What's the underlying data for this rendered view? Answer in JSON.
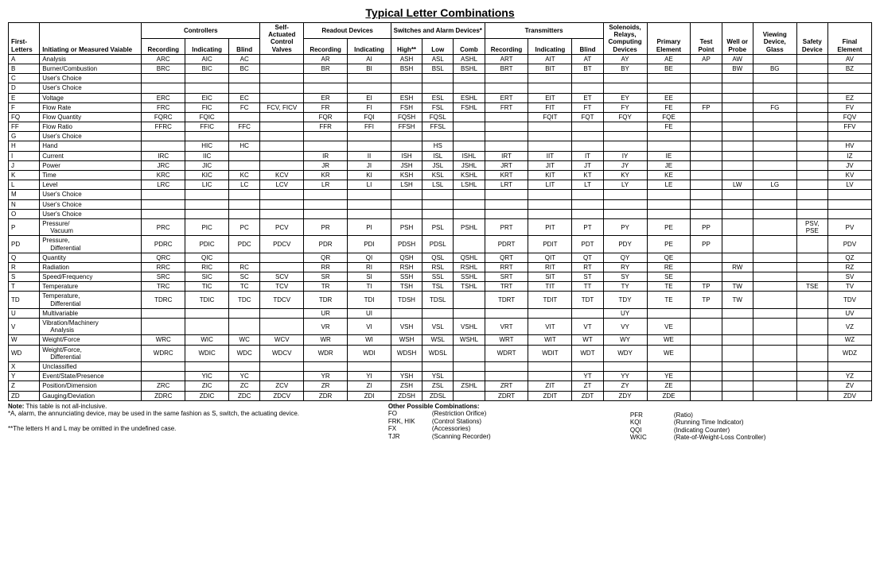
{
  "title": "Typical Letter Combinations",
  "group_headers": {
    "controllers": "Controllers",
    "readout": "Readout Devices",
    "switches": "Switches and Alarm Devices*",
    "transmitters": "Transmitters"
  },
  "col_headers": {
    "first_letters": "First-Letters",
    "initiating": "Initiating or Measured Vaiable",
    "recording": "Recording",
    "indicating": "Indicating",
    "blind": "Blind",
    "scv": "Self-Actuated Control Valves",
    "high": "High**",
    "low": "Low",
    "comb": "Comb",
    "solenoids": "Solenoids, Relays, Computing Devices",
    "primary": "Primary Element",
    "test": "Test Point",
    "well": "Well or Probe",
    "viewing": "Viewing Device, Glass",
    "safety": "Safety Device",
    "final": "Final Element"
  },
  "rows": [
    {
      "fl": "A",
      "var": "Analysis",
      "c": [
        "ARC",
        "AIC",
        "AC",
        "",
        "AR",
        "AI",
        "ASH",
        "ASL",
        "ASHL",
        "ART",
        "AIT",
        "AT",
        "AY",
        "AE",
        "AP",
        "AW",
        "",
        "",
        "AV"
      ]
    },
    {
      "fl": "B",
      "var": "Burner/Combustion",
      "c": [
        "BRC",
        "BIC",
        "BC",
        "",
        "BR",
        "BI",
        "BSH",
        "BSL",
        "BSHL",
        "BRT",
        "BIT",
        "BT",
        "BY",
        "BE",
        "",
        "BW",
        "BG",
        "",
        "BZ"
      ]
    },
    {
      "fl": "C",
      "var": "User's Choice",
      "c": [
        "",
        "",
        "",
        "",
        "",
        "",
        "",
        "",
        "",
        "",
        "",
        "",
        "",
        "",
        "",
        "",
        "",
        "",
        ""
      ]
    },
    {
      "fl": "D",
      "var": "User's Choice",
      "c": [
        "",
        "",
        "",
        "",
        "",
        "",
        "",
        "",
        "",
        "",
        "",
        "",
        "",
        "",
        "",
        "",
        "",
        "",
        ""
      ]
    },
    {
      "fl": "E",
      "var": "Voltage",
      "c": [
        "ERC",
        "EIC",
        "EC",
        "",
        "ER",
        "EI",
        "ESH",
        "ESL",
        "ESHL",
        "ERT",
        "EIT",
        "ET",
        "EY",
        "EE",
        "",
        "",
        "",
        "",
        "EZ"
      ]
    },
    {
      "fl": "F",
      "var": "Flow Rate",
      "c": [
        "FRC",
        "FIC",
        "FC",
        "FCV, FICV",
        "FR",
        "FI",
        "FSH",
        "FSL",
        "FSHL",
        "FRT",
        "FIT",
        "FT",
        "FY",
        "FE",
        "FP",
        "",
        "FG",
        "",
        "FV"
      ]
    },
    {
      "fl": "FQ",
      "var": "Flow Quantity",
      "c": [
        "FQRC",
        "FQIC",
        "",
        "",
        "FQR",
        "FQI",
        "FQSH",
        "FQSL",
        "",
        "",
        "FQIT",
        "FQT",
        "FQY",
        "FQE",
        "",
        "",
        "",
        "",
        "FQV"
      ]
    },
    {
      "fl": "FF",
      "var": "Flow Ratio",
      "c": [
        "FFRC",
        "FFIC",
        "FFC",
        "",
        "FFR",
        "FFI",
        "FFSH",
        "FFSL",
        "",
        "",
        "",
        "",
        "",
        "FE",
        "",
        "",
        "",
        "",
        "FFV"
      ]
    },
    {
      "fl": "G",
      "var": "User's Choice",
      "c": [
        "",
        "",
        "",
        "",
        "",
        "",
        "",
        "",
        "",
        "",
        "",
        "",
        "",
        "",
        "",
        "",
        "",
        "",
        ""
      ]
    },
    {
      "fl": "H",
      "var": "Hand",
      "c": [
        "",
        "HIC",
        "HC",
        "",
        "",
        "",
        "",
        "HS",
        "",
        "",
        "",
        "",
        "",
        "",
        "",
        "",
        "",
        "",
        "HV"
      ]
    },
    {
      "fl": "I",
      "var": "Current",
      "c": [
        "IRC",
        "IIC",
        "",
        "",
        "IR",
        "II",
        "ISH",
        "ISL",
        "ISHL",
        "IRT",
        "IIT",
        "IT",
        "IY",
        "IE",
        "",
        "",
        "",
        "",
        "IZ"
      ]
    },
    {
      "fl": "J",
      "var": "Power",
      "c": [
        "JRC",
        "JIC",
        "",
        "",
        "JR",
        "JI",
        "JSH",
        "JSL",
        "JSHL",
        "JRT",
        "JIT",
        "JT",
        "JY",
        "JE",
        "",
        "",
        "",
        "",
        "JV"
      ]
    },
    {
      "fl": "K",
      "var": "Time",
      "c": [
        "KRC",
        "KIC",
        "KC",
        "KCV",
        "KR",
        "KI",
        "KSH",
        "KSL",
        "KSHL",
        "KRT",
        "KIT",
        "KT",
        "KY",
        "KE",
        "",
        "",
        "",
        "",
        "KV"
      ]
    },
    {
      "fl": "L",
      "var": "Level",
      "c": [
        "LRC",
        "LIC",
        "LC",
        "LCV",
        "LR",
        "LI",
        "LSH",
        "LSL",
        "LSHL",
        "LRT",
        "LIT",
        "LT",
        "LY",
        "LE",
        "",
        "LW",
        "LG",
        "",
        "LV"
      ]
    },
    {
      "fl": "M",
      "var": "User's Choice",
      "c": [
        "",
        "",
        "",
        "",
        "",
        "",
        "",
        "",
        "",
        "",
        "",
        "",
        "",
        "",
        "",
        "",
        "",
        "",
        ""
      ]
    },
    {
      "fl": "N",
      "var": "User's Choice",
      "c": [
        "",
        "",
        "",
        "",
        "",
        "",
        "",
        "",
        "",
        "",
        "",
        "",
        "",
        "",
        "",
        "",
        "",
        "",
        ""
      ]
    },
    {
      "fl": "O",
      "var": "User's Choice",
      "c": [
        "",
        "",
        "",
        "",
        "",
        "",
        "",
        "",
        "",
        "",
        "",
        "",
        "",
        "",
        "",
        "",
        "",
        "",
        ""
      ]
    },
    {
      "fl": "P",
      "var": "Pressure/",
      "var2": "Vacuum",
      "c": [
        "PRC",
        "PIC",
        "PC",
        "PCV",
        "PR",
        "PI",
        "PSH",
        "PSL",
        "PSHL",
        "PRT",
        "PIT",
        "PT",
        "PY",
        "PE",
        "PP",
        "",
        "",
        "PSV, PSE",
        "PV"
      ]
    },
    {
      "fl": "PD",
      "var": "Pressure,",
      "var2": "Differential",
      "c": [
        "PDRC",
        "PDIC",
        "PDC",
        "PDCV",
        "PDR",
        "PDI",
        "PDSH",
        "PDSL",
        "",
        "PDRT",
        "PDIT",
        "PDT",
        "PDY",
        "PE",
        "PP",
        "",
        "",
        "",
        "PDV"
      ]
    },
    {
      "fl": "Q",
      "var": "Quantity",
      "c": [
        "QRC",
        "QIC",
        "",
        "",
        "QR",
        "QI",
        "QSH",
        "QSL",
        "QSHL",
        "QRT",
        "QIT",
        "QT",
        "QY",
        "QE",
        "",
        "",
        "",
        "",
        "QZ"
      ]
    },
    {
      "fl": "R",
      "var": "Radiation",
      "c": [
        "RRC",
        "RIC",
        "RC",
        "",
        "RR",
        "RI",
        "RSH",
        "RSL",
        "RSHL",
        "RRT",
        "RIT",
        "RT",
        "RY",
        "RE",
        "",
        "RW",
        "",
        "",
        "RZ"
      ]
    },
    {
      "fl": "S",
      "var": "Speed/Frequency",
      "c": [
        "SRC",
        "SIC",
        "SC",
        "SCV",
        "SR",
        "SI",
        "SSH",
        "SSL",
        "SSHL",
        "SRT",
        "SIT",
        "ST",
        "SY",
        "SE",
        "",
        "",
        "",
        "",
        "SV"
      ]
    },
    {
      "fl": "T",
      "var": "Temperature",
      "c": [
        "TRC",
        "TIC",
        "TC",
        "TCV",
        "TR",
        "TI",
        "TSH",
        "TSL",
        "TSHL",
        "TRT",
        "TIT",
        "TT",
        "TY",
        "TE",
        "TP",
        "TW",
        "",
        "TSE",
        "TV"
      ]
    },
    {
      "fl": "TD",
      "var": "Temperature,",
      "var2": "Differential",
      "c": [
        "TDRC",
        "TDIC",
        "TDC",
        "TDCV",
        "TDR",
        "TDI",
        "TDSH",
        "TDSL",
        "",
        "TDRT",
        "TDIT",
        "TDT",
        "TDY",
        "TE",
        "TP",
        "TW",
        "",
        "",
        "TDV"
      ]
    },
    {
      "fl": "U",
      "var": "Multivariable",
      "c": [
        "",
        "",
        "",
        "",
        "UR",
        "UI",
        "",
        "",
        "",
        "",
        "",
        "",
        "UY",
        "",
        "",
        "",
        "",
        "",
        "UV"
      ]
    },
    {
      "fl": "V",
      "var": "Vibration/Machinery",
      "var2": "Analysis",
      "c": [
        "",
        "",
        "",
        "",
        "VR",
        "VI",
        "VSH",
        "VSL",
        "VSHL",
        "VRT",
        "VIT",
        "VT",
        "VY",
        "VE",
        "",
        "",
        "",
        "",
        "VZ"
      ]
    },
    {
      "fl": "W",
      "var": "Weight/Force",
      "c": [
        "WRC",
        "WIC",
        "WC",
        "WCV",
        "WR",
        "WI",
        "WSH",
        "WSL",
        "WSHL",
        "WRT",
        "WIT",
        "WT",
        "WY",
        "WE",
        "",
        "",
        "",
        "",
        "WZ"
      ]
    },
    {
      "fl": "WD",
      "var": "Weight/Force,",
      "var2": "Differential",
      "c": [
        "WDRC",
        "WDIC",
        "WDC",
        "WDCV",
        "WDR",
        "WDI",
        "WDSH",
        "WDSL",
        "",
        "WDRT",
        "WDIT",
        "WDT",
        "WDY",
        "WE",
        "",
        "",
        "",
        "",
        "WDZ"
      ]
    },
    {
      "fl": "X",
      "var": "Unclassified",
      "c": [
        "",
        "",
        "",
        "",
        "",
        "",
        "",
        "",
        "",
        "",
        "",
        "",
        "",
        "",
        "",
        "",
        "",
        "",
        ""
      ]
    },
    {
      "fl": "Y",
      "var": "Event/State/Presence",
      "c": [
        "",
        "YIC",
        "YC",
        "",
        "YR",
        "YI",
        "YSH",
        "YSL",
        "",
        "",
        "",
        "YT",
        "YY",
        "YE",
        "",
        "",
        "",
        "",
        "YZ"
      ]
    },
    {
      "fl": "Z",
      "var": "Position/Dimension",
      "c": [
        "ZRC",
        "ZIC",
        "ZC",
        "ZCV",
        "ZR",
        "ZI",
        "ZSH",
        "ZSL",
        "ZSHL",
        "ZRT",
        "ZIT",
        "ZT",
        "ZY",
        "ZE",
        "",
        "",
        "",
        "",
        "ZV"
      ]
    },
    {
      "fl": "ZD",
      "var": "Gauging/Deviation",
      "c": [
        "ZDRC",
        "ZDIC",
        "ZDC",
        "ZDCV",
        "ZDR",
        "ZDI",
        "ZDSH",
        "ZDSL",
        "",
        "ZDRT",
        "ZDIT",
        "ZDT",
        "ZDY",
        "ZDE",
        "",
        "",
        "",
        "",
        "ZDV"
      ]
    }
  ],
  "notes": {
    "title": "Note:",
    "line1": "This table is not all-inclusive.",
    "line2": "*A, alarm, the annunciating device, may be used in the same fashion as S, switch, the actuating device.",
    "line3": "**The letters H and L may be omitted in the undefined case.",
    "other_title": "Other Possible Combinations:",
    "combos": [
      {
        "code": "FO",
        "desc": "(Restriction Orifice)"
      },
      {
        "code": "FRK, HIK",
        "desc": "(Control Stations)"
      },
      {
        "code": "FX",
        "desc": "(Accessories)"
      },
      {
        "code": "TJR",
        "desc": "(Scanning Recorder)"
      },
      {
        "code": "PFR",
        "desc": "(Ratio)"
      },
      {
        "code": "KQI",
        "desc": "(Running Time Indicator)"
      },
      {
        "code": "QQI",
        "desc": "(Indicating Counter)"
      },
      {
        "code": "WKIC",
        "desc": "(Rate-of-Weight-Loss Controller)"
      }
    ]
  }
}
